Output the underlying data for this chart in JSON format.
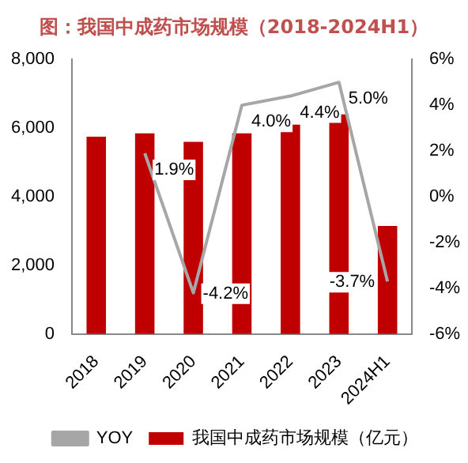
{
  "chart_data": {
    "type": "bar",
    "title": "图：我国中成药市场规模（2018-2024H1）",
    "categories": [
      "2018",
      "2019",
      "2020",
      "2021",
      "2022",
      "2023",
      "2024H1"
    ],
    "series": [
      {
        "name": "我国中成药市场规模（亿元）",
        "color": "#c00000",
        "values": [
          5750,
          5850,
          5600,
          5850,
          6100,
          6400,
          3150
        ]
      },
      {
        "name": "YOY",
        "type": "line",
        "axis": "y2",
        "color": "#a6a6a6",
        "values": [
          null,
          1.9,
          -4.2,
          4.0,
          4.4,
          5.0,
          -3.7
        ],
        "value_labels": [
          null,
          "1.9%",
          "-4.2%",
          "4.0%",
          "4.4%",
          "5.0%",
          "-3.7%"
        ]
      }
    ],
    "ylim": [
      0,
      8000
    ],
    "yticks": [
      {
        "value": 0,
        "label": "0"
      },
      {
        "value": 2000,
        "label": "2,000"
      },
      {
        "value": 4000,
        "label": "4,000"
      },
      {
        "value": 6000,
        "label": "6,000"
      },
      {
        "value": 8000,
        "label": "8,000"
      }
    ],
    "y2lim": [
      -6,
      6
    ],
    "y2ticks": [
      {
        "value": -6,
        "label": "-6%"
      },
      {
        "value": -4,
        "label": "-4%"
      },
      {
        "value": -2,
        "label": "-2%"
      },
      {
        "value": 0,
        "label": "0%"
      },
      {
        "value": 2,
        "label": "2%"
      },
      {
        "value": 4,
        "label": "4%"
      },
      {
        "value": 6,
        "label": "6%"
      }
    ],
    "legend": "bottom",
    "grid": false
  }
}
